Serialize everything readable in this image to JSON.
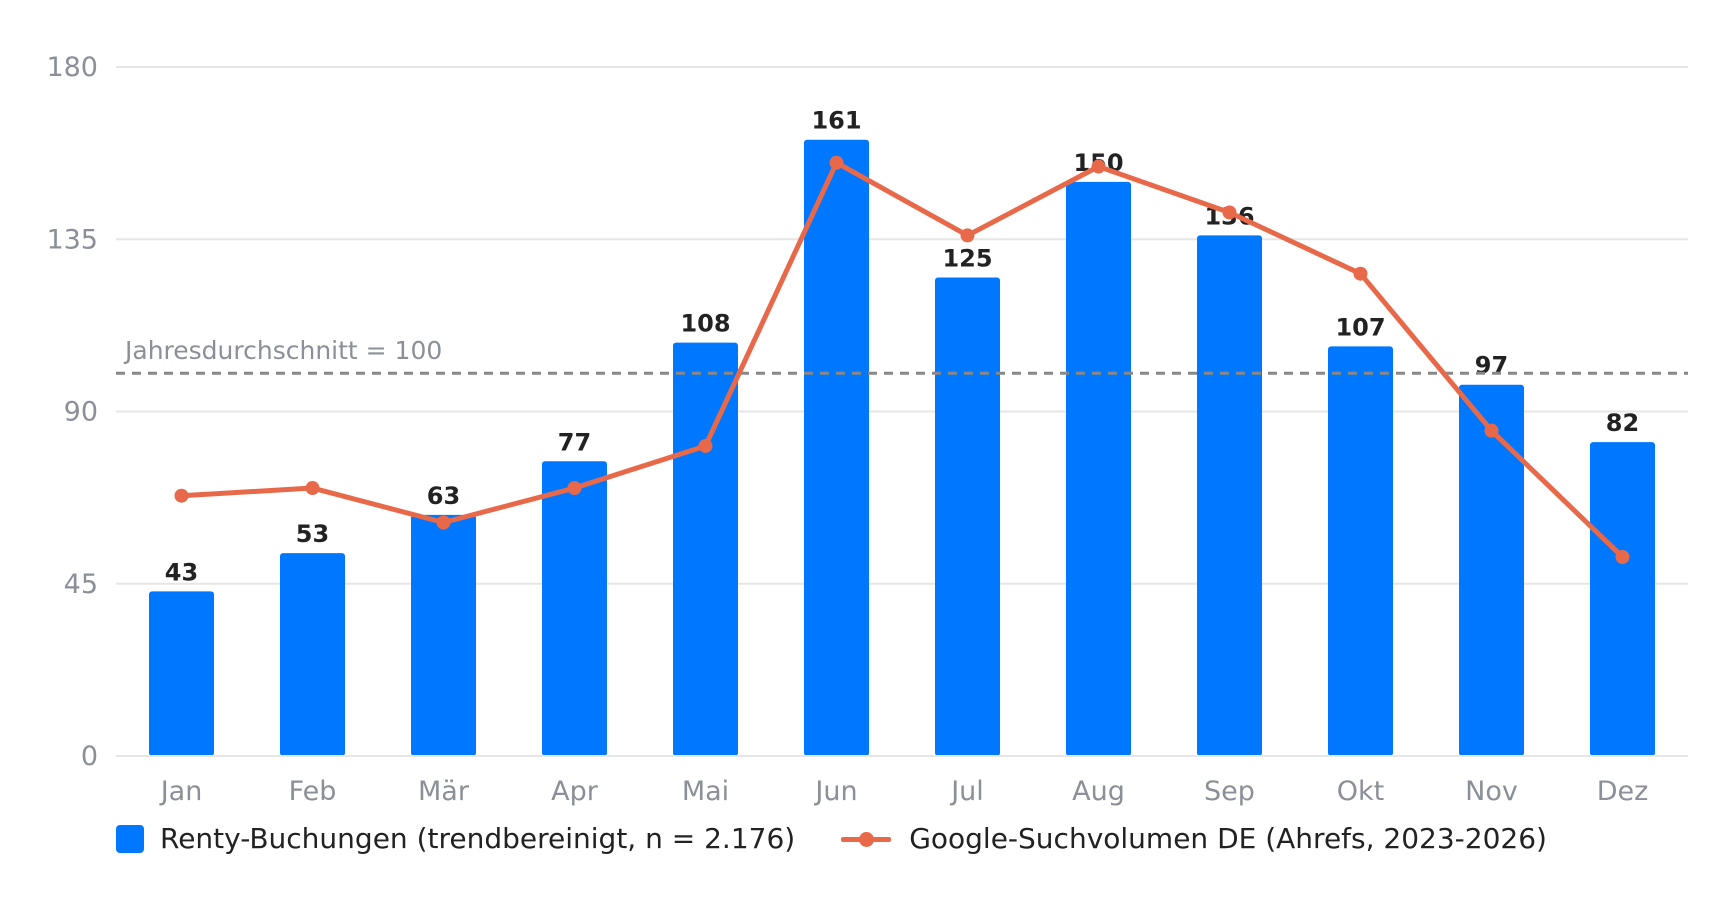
{
  "chart_data": {
    "type": "bar",
    "categories": [
      "Jan",
      "Feb",
      "Mär",
      "Apr",
      "Mai",
      "Jun",
      "Jul",
      "Aug",
      "Sep",
      "Okt",
      "Nov",
      "Dez"
    ],
    "series": [
      {
        "name": "Renty-Buchungen (trendbereinigt, n = 2.176)",
        "type": "bar",
        "color": "#0077ff",
        "values": [
          43,
          53,
          63,
          77,
          108,
          161,
          125,
          150,
          136,
          107,
          97,
          82
        ],
        "labels": [
          "43",
          "53",
          "63",
          "77",
          "108",
          "161",
          "125",
          "150",
          "136",
          "107",
          "97",
          "82"
        ]
      },
      {
        "name": "Google-Suchvolumen DE (Ahrefs, 2023-2026)",
        "type": "line",
        "color": "#e8694a",
        "values": [
          68,
          70,
          61,
          70,
          81,
          155,
          136,
          154,
          142,
          126,
          85,
          52
        ]
      }
    ],
    "y_ticks": [
      "0",
      "45",
      "90",
      "135",
      "180"
    ],
    "ylim": [
      0,
      180
    ],
    "reference_line": {
      "value": 100,
      "label": "Jahresdurchschnitt = 100",
      "color": "#888888"
    },
    "grid": true,
    "legend_position": "bottom-left"
  }
}
